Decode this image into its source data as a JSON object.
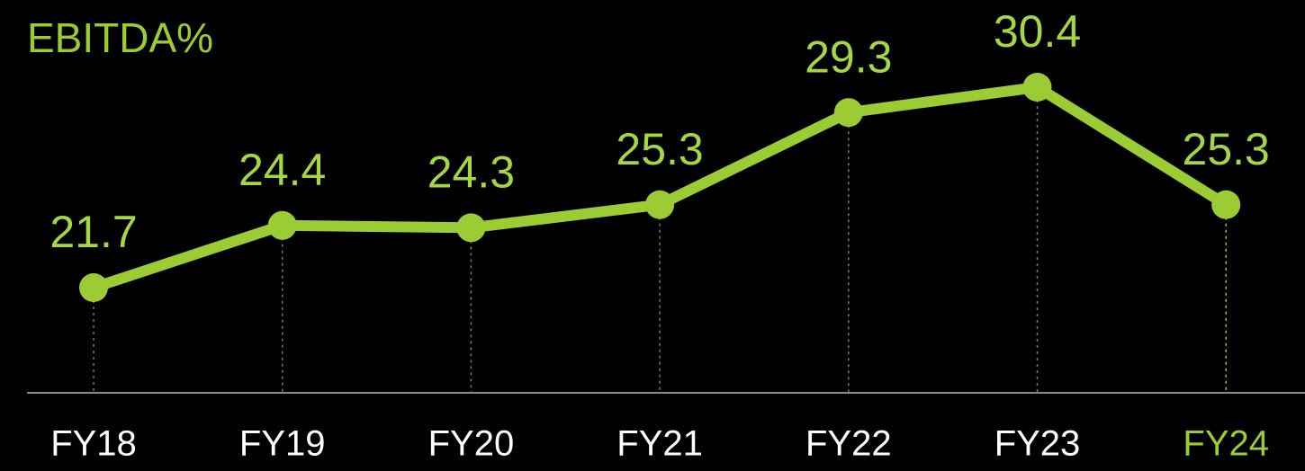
{
  "chart_data": {
    "type": "line",
    "title": "EBITDA%",
    "categories": [
      "FY18",
      "FY19",
      "FY20",
      "FY21",
      "FY22",
      "FY23",
      "FY24"
    ],
    "values": [
      21.7,
      24.4,
      24.3,
      25.3,
      29.3,
      30.4,
      25.3
    ],
    "color": "#9bcc34",
    "highlight": "FY24"
  }
}
